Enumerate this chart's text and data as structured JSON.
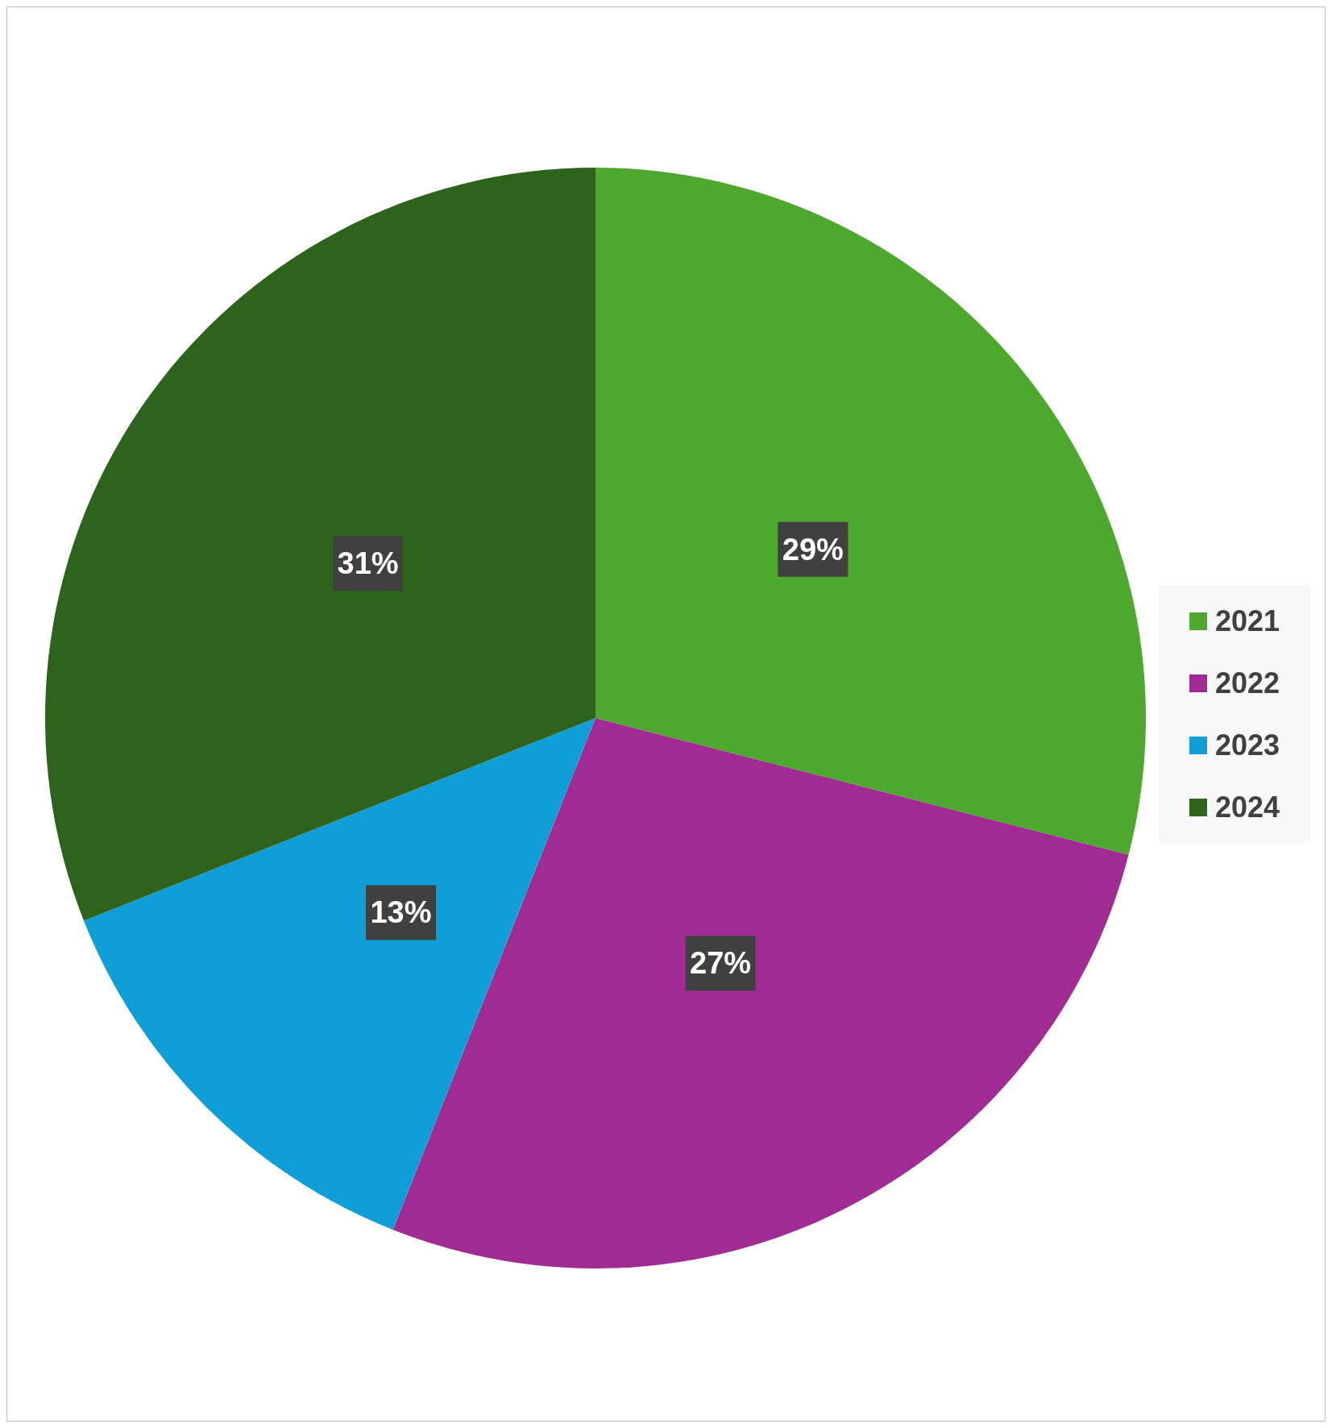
{
  "chart_data": {
    "type": "pie",
    "categories": [
      "2021",
      "2022",
      "2023",
      "2024"
    ],
    "values": [
      29,
      27,
      13,
      31
    ],
    "value_labels": [
      "29%",
      "27%",
      "13%",
      "31%"
    ],
    "colors": [
      "#4ea72e",
      "#a02b93",
      "#0f9ed5",
      "#2e631d"
    ],
    "legend": "right"
  }
}
